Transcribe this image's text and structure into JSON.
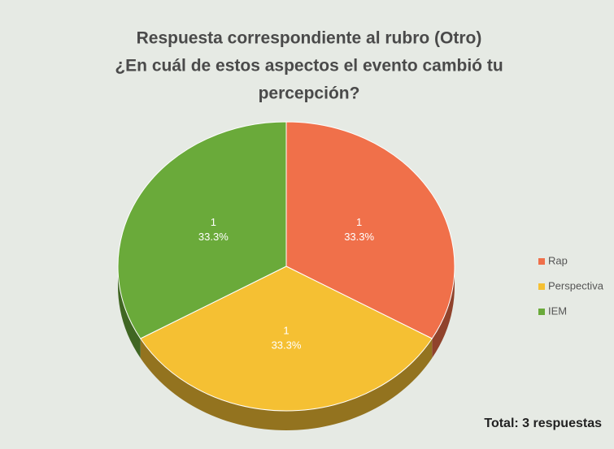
{
  "chart_data": {
    "type": "pie",
    "title": [
      "Respuesta correspondiente al rubro (Otro)",
      "¿En cuál de estos aspectos el evento cambió tu",
      "percepción?"
    ],
    "categories": [
      "Rap",
      "Perspectiva",
      "IEM"
    ],
    "values": [
      1,
      1,
      1
    ],
    "percent_labels": [
      "33.3%",
      "33.3%",
      "33.3%"
    ],
    "colors": [
      "#f0704a",
      "#f5c033",
      "#6aaa3a"
    ],
    "annotation": "Total: 3 respuestas",
    "legend": "right"
  }
}
